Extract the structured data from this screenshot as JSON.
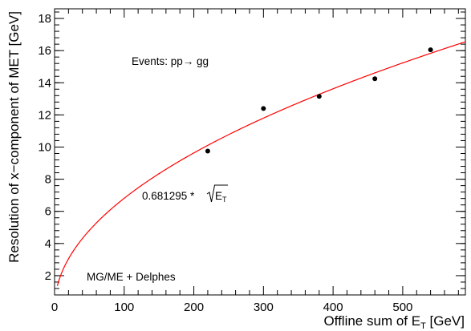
{
  "chart_data": {
    "type": "scatter",
    "xlabel": {
      "main": "Offline sum of E",
      "sub": "T",
      "suffix": " [GeV]"
    },
    "ylabel": "Resolution of x−component  of MET [GeV]",
    "xlim": [
      0,
      590
    ],
    "ylim": [
      0.8,
      18.6
    ],
    "x_ticks": [
      0,
      100,
      200,
      300,
      400,
      500
    ],
    "y_ticks": [
      2,
      4,
      6,
      8,
      10,
      12,
      14,
      16,
      18
    ],
    "grid": false,
    "series": [
      {
        "kind": "points",
        "x": [
          220,
          300,
          380,
          460,
          540
        ],
        "y": [
          9.75,
          12.4,
          13.15,
          14.25,
          16.05
        ],
        "color": "#000000"
      },
      {
        "kind": "fit",
        "function": "sqrt",
        "coefficient": 0.681295,
        "color": "#ff0000"
      }
    ],
    "annotations": {
      "events": "Events: pp→ gg",
      "fit_coefficient": "0.681295 *",
      "fit_var_main": "E",
      "fit_var_sub": "T",
      "generator": "MG/ME + Delphes"
    }
  }
}
